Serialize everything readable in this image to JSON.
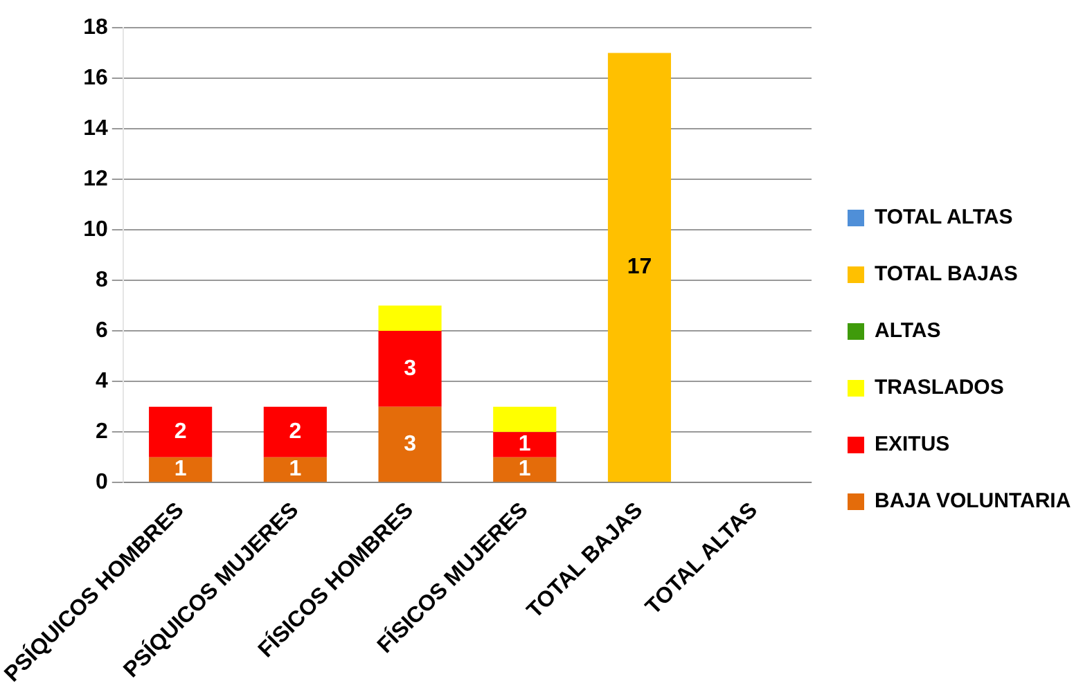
{
  "chart_data": {
    "type": "bar",
    "stacked": true,
    "categories": [
      "PSÍQUICOS HOMBRES",
      "PSÍQUICOS MUJERES",
      "FÍSICOS HOMBRES",
      "FÍSICOS MUJERES",
      "TOTAL BAJAS",
      "TOTAL ALTAS"
    ],
    "series": [
      {
        "name": "BAJA VOLUNTARIA",
        "color": "#e46c0a",
        "values": [
          1,
          1,
          3,
          1,
          null,
          null
        ],
        "value_labels": [
          "1",
          "1",
          "3",
          "1",
          null,
          null
        ]
      },
      {
        "name": "EXITUS",
        "color": "#ff0000",
        "values": [
          2,
          2,
          3,
          1,
          null,
          null
        ],
        "value_labels": [
          "2",
          "2",
          "3",
          "1",
          null,
          null
        ]
      },
      {
        "name": "TRASLADOS",
        "color": "#ffff00",
        "values": [
          null,
          null,
          1,
          1,
          null,
          null
        ]
      },
      {
        "name": "ALTAS",
        "color": "#3f9b0b",
        "values": [
          null,
          null,
          null,
          null,
          null,
          null
        ]
      },
      {
        "name": "TOTAL BAJAS",
        "color": "#ffc000",
        "values": [
          null,
          null,
          null,
          null,
          17,
          null
        ],
        "value_labels": [
          null,
          null,
          null,
          null,
          "17",
          null
        ]
      },
      {
        "name": "TOTAL ALTAS",
        "color": "#4f8fd8",
        "values": [
          null,
          null,
          null,
          null,
          null,
          0
        ]
      }
    ],
    "ylim": [
      0,
      18
    ],
    "yticks": [
      0,
      2,
      4,
      6,
      8,
      10,
      12,
      14,
      16,
      18
    ],
    "grid": "y",
    "legend": "right"
  }
}
